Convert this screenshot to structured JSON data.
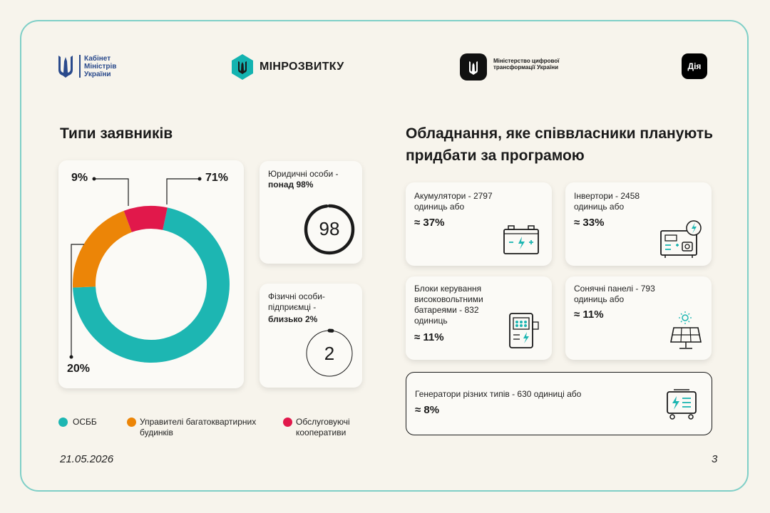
{
  "header": {
    "kabmin_label": "Кабінет Міністрів України",
    "minrozvytku_label": "МІНРОЗВИТКУ",
    "mintsyfra_label": "Міністерство цифрової трансформації України",
    "diia_label": "Дія"
  },
  "left": {
    "title": "Типи заявників",
    "labels": {
      "top_left": "9%",
      "top_right": "71%",
      "bottom_left": "20%"
    },
    "legend": [
      {
        "label": "ОСББ",
        "color": "#1db6b2"
      },
      {
        "label": "Управителі багатоквартирних будинків",
        "color": "#ec8507"
      },
      {
        "label": "Обслуговуючі кооперативи",
        "color": "#e1184b"
      }
    ]
  },
  "chart_data": {
    "type": "pie",
    "donut": true,
    "categories": [
      "ОСББ",
      "Управителі багатоквартирних будинків",
      "Обслуговуючі кооперативи"
    ],
    "values": [
      71,
      20,
      9
    ],
    "colors": [
      "#1db6b2",
      "#ec8507",
      "#e1184b"
    ],
    "labels": [
      "71%",
      "20%",
      "9%"
    ]
  },
  "cards": {
    "legal": {
      "text": "Юридичні особи -",
      "bold": "понад 98%",
      "ring_value": "98",
      "ring_fraction": 0.98
    },
    "individual": {
      "text": "Фізичні особи-підприємці -",
      "bold": "близько 2%",
      "ring_value": "2",
      "ring_fraction": 0.02
    }
  },
  "right": {
    "title": "Обладнання, яке співвласники планують придбати за програмою",
    "items": [
      {
        "text": "Акумулятори - 2797 одиниць або",
        "pct": "≈ 37%",
        "icon": "battery-icon"
      },
      {
        "text": "Інвертори - 2458 одиниць або",
        "pct": "≈ 33%",
        "icon": "inverter-icon"
      },
      {
        "text": "Блоки керування високовольтними батареями - 832 одиниць",
        "pct": "≈ 11%",
        "icon": "bms-icon"
      },
      {
        "text": "Сонячні панелі - 793 одиниць або",
        "pct": "≈ 11%",
        "icon": "solar-panel-icon"
      },
      {
        "text": "Генератори різних типів - 630 одиниці або",
        "pct": "≈ 8%",
        "icon": "generator-icon"
      }
    ]
  },
  "footer": {
    "date": "21.05.2026",
    "page": "3"
  }
}
